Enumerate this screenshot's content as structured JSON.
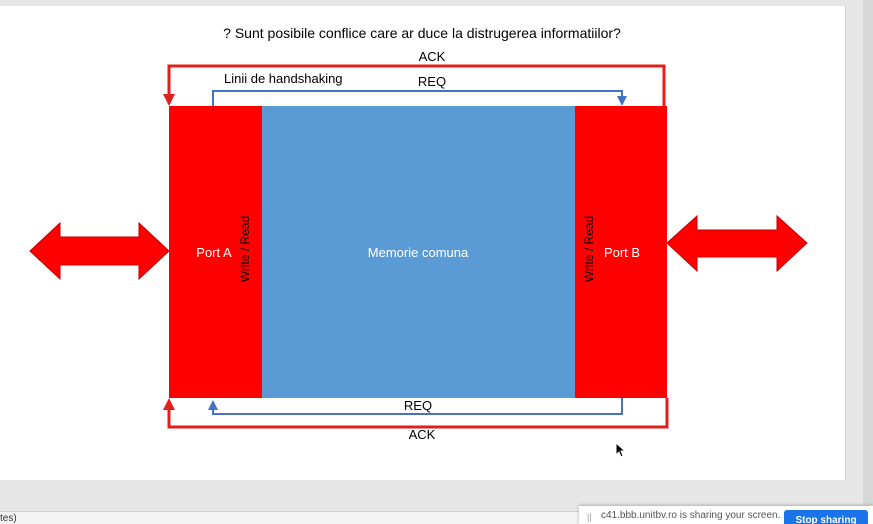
{
  "slide": {
    "question": "? Sunt posibile conflice care ar duce la distrugerea informatiilor?",
    "handshake_label": "Linii de handshaking",
    "top_ack": "ACK",
    "top_req": "REQ",
    "bottom_req": "REQ",
    "bottom_ack": "ACK",
    "memory_label": "Memorie comuna",
    "port_a": "Port A",
    "port_b": "Port B",
    "rw_left": "Write / Read",
    "rw_right": "Write / Read"
  },
  "colors": {
    "port": "#ff0000",
    "memory": "#5b9bd5",
    "ack_line": "#e0201c",
    "req_line": "#4472c4"
  },
  "statusbar": {
    "left_text": "tes)"
  },
  "share": {
    "text": "c41.bbb.unitbv.ro is sharing your screen.",
    "stop_label": "Stop sharing"
  }
}
